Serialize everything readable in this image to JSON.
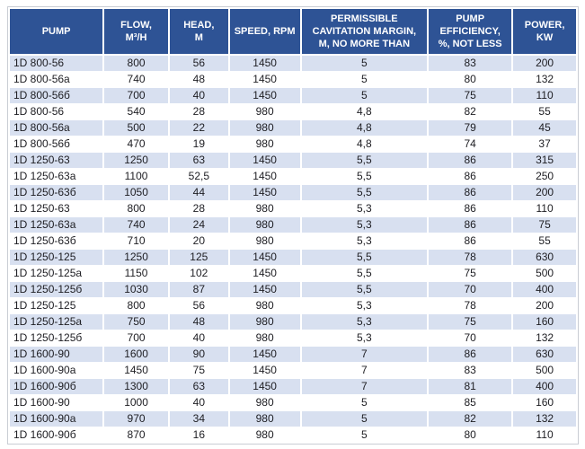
{
  "colors": {
    "header_bg": "#2e5395",
    "header_text": "#ffffff",
    "row_shaded": "#d8e0f0",
    "row_white": "#ffffff",
    "body_text": "#1d1d22"
  },
  "table": {
    "columns": [
      {
        "id": "pump",
        "label": "PUMP"
      },
      {
        "id": "flow",
        "label": "FLOW,\nM³/H"
      },
      {
        "id": "head",
        "label": "HEAD,\nM"
      },
      {
        "id": "speed",
        "label": "SPEED, RPM"
      },
      {
        "id": "cavitation",
        "label": "PERMISSIBLE\nCAVITATION MARGIN,\nM, NO MORE THAN"
      },
      {
        "id": "efficiency",
        "label": "PUMP\nEFFICIENCY,\n%, NOT LESS"
      },
      {
        "id": "power",
        "label": "POWER,\nKW"
      }
    ],
    "rows": [
      [
        "1D 800-56",
        "800",
        "56",
        "1450",
        "5",
        "83",
        "200"
      ],
      [
        "1D 800-56a",
        "740",
        "48",
        "1450",
        "5",
        "80",
        "132"
      ],
      [
        "1D 800-56б",
        "700",
        "40",
        "1450",
        "5",
        "75",
        "110"
      ],
      [
        "1D 800-56",
        "540",
        "28",
        "980",
        "4,8",
        "82",
        "55"
      ],
      [
        "1D 800-56a",
        "500",
        "22",
        "980",
        "4,8",
        "79",
        "45"
      ],
      [
        "1D 800-56б",
        "470",
        "19",
        "980",
        "4,8",
        "74",
        "37"
      ],
      [
        "1D 1250-63",
        "1250",
        "63",
        "1450",
        "5,5",
        "86",
        "315"
      ],
      [
        "1D 1250-63a",
        "1100",
        "52,5",
        "1450",
        "5,5",
        "86",
        "250"
      ],
      [
        "1D 1250-63б",
        "1050",
        "44",
        "1450",
        "5,5",
        "86",
        "200"
      ],
      [
        "1D 1250-63",
        "800",
        "28",
        "980",
        "5,3",
        "86",
        "110"
      ],
      [
        "1D 1250-63a",
        "740",
        "24",
        "980",
        "5,3",
        "86",
        "75"
      ],
      [
        "1D 1250-63б",
        "710",
        "20",
        "980",
        "5,3",
        "86",
        "55"
      ],
      [
        "1D 1250-125",
        "1250",
        "125",
        "1450",
        "5,5",
        "78",
        "630"
      ],
      [
        "1D 1250-125a",
        "1150",
        "102",
        "1450",
        "5,5",
        "75",
        "500"
      ],
      [
        "1D 1250-125б",
        "1030",
        "87",
        "1450",
        "5,5",
        "70",
        "400"
      ],
      [
        "1D 1250-125",
        "800",
        "56",
        "980",
        "5,3",
        "78",
        "200"
      ],
      [
        "1D 1250-125a",
        "750",
        "48",
        "980",
        "5,3",
        "75",
        "160"
      ],
      [
        "1D 1250-125б",
        "700",
        "40",
        "980",
        "5,3",
        "70",
        "132"
      ],
      [
        "1D 1600-90",
        "1600",
        "90",
        "1450",
        "7",
        "86",
        "630"
      ],
      [
        "1D 1600-90a",
        "1450",
        "75",
        "1450",
        "7",
        "83",
        "500"
      ],
      [
        "1D 1600-90б",
        "1300",
        "63",
        "1450",
        "7",
        "81",
        "400"
      ],
      [
        "1D 1600-90",
        "1000",
        "40",
        "980",
        "5",
        "85",
        "160"
      ],
      [
        "1D 1600-90a",
        "970",
        "34",
        "980",
        "5",
        "82",
        "132"
      ],
      [
        "1D 1600-90б",
        "870",
        "16",
        "980",
        "5",
        "80",
        "110"
      ]
    ]
  }
}
